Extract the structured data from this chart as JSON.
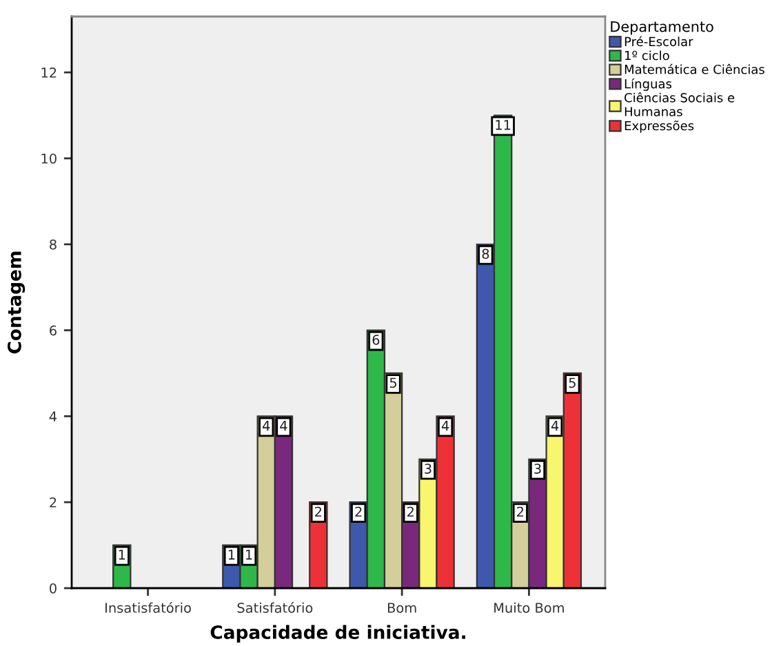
{
  "chart_data": {
    "type": "bar",
    "xlabel": "Capacidade de iniciativa.",
    "ylabel": "Contagem",
    "legend_title": "Departamento",
    "categories": [
      "Insatisfatório",
      "Satisfatório",
      "Bom",
      "Muito Bom"
    ],
    "series": [
      {
        "name": "Pré-Escolar",
        "color": "#3e58ac",
        "values": [
          null,
          1,
          2,
          8
        ]
      },
      {
        "name": "1º ciclo",
        "color": "#2fb84a",
        "values": [
          1,
          1,
          6,
          11
        ]
      },
      {
        "name": "Matemática e Ciências",
        "color": "#d4ce9a",
        "values": [
          null,
          4,
          5,
          2
        ]
      },
      {
        "name": "Línguas",
        "color": "#79287c",
        "values": [
          null,
          4,
          2,
          3
        ]
      },
      {
        "name": "Ciências Sociais e\nHumanas",
        "color": "#f8f56e",
        "values": [
          null,
          null,
          3,
          4
        ]
      },
      {
        "name": "Expressões",
        "color": "#ee3137",
        "values": [
          null,
          2,
          4,
          5
        ]
      }
    ],
    "ylim": [
      0,
      13.3
    ],
    "yticks": [
      0,
      2,
      4,
      6,
      8,
      10,
      12
    ],
    "data_labels": true,
    "legend": "top right"
  }
}
